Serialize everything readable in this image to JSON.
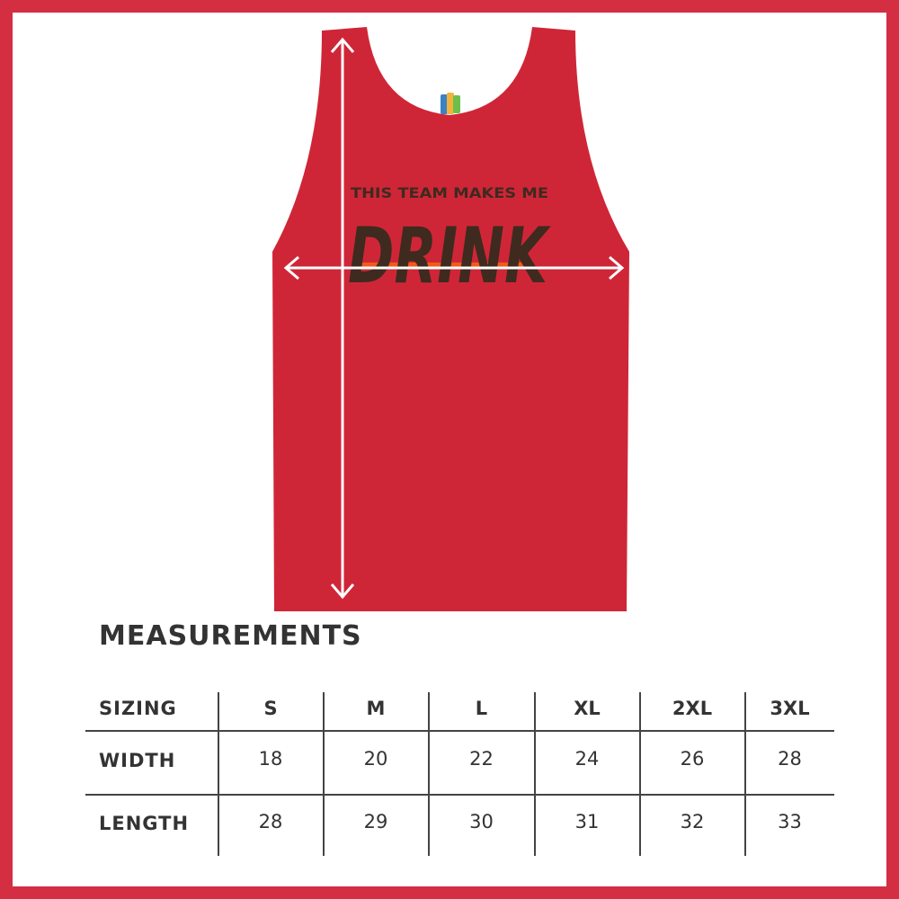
{
  "product": {
    "print_line1": "THIS TEAM MAKES ME",
    "print_line2": "DRINK",
    "shirt_color": "#cf2637",
    "print_color": "#3f2a1f",
    "accent_color": "#f05a1a",
    "border_color": "#d42e43"
  },
  "measurements": {
    "title": "MEASUREMENTS",
    "header": [
      "SIZING",
      "S",
      "M",
      "L",
      "XL",
      "2XL",
      "3XL"
    ],
    "rows": [
      {
        "label": "WIDTH",
        "values": [
          "18",
          "20",
          "22",
          "24",
          "26",
          "28"
        ]
      },
      {
        "label": "LENGTH",
        "values": [
          "28",
          "29",
          "30",
          "31",
          "32",
          "33"
        ]
      }
    ]
  }
}
